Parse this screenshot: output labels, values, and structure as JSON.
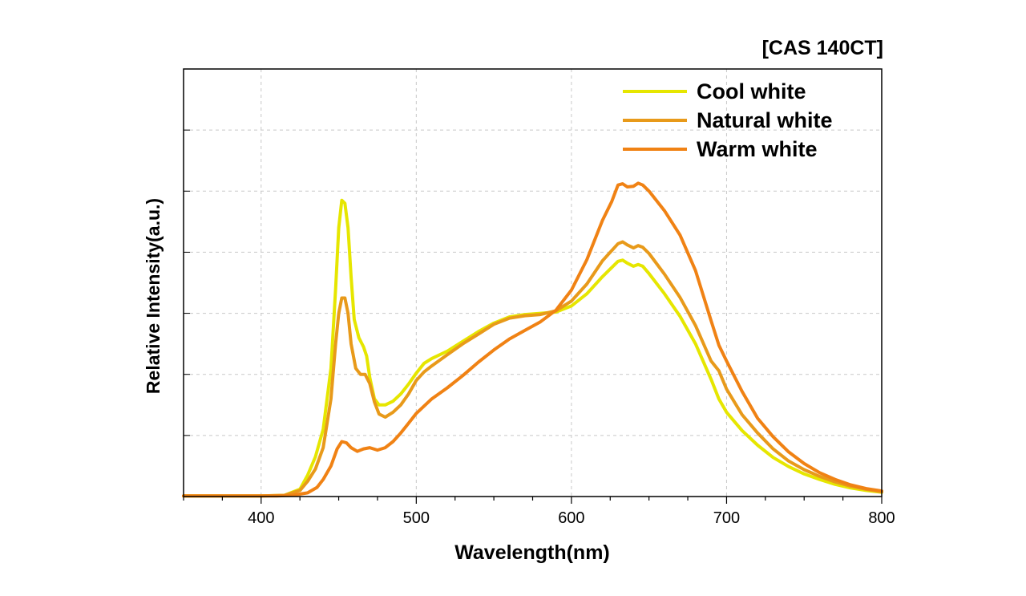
{
  "chart_data": {
    "type": "line",
    "title": "[CAS 140CT]",
    "xlabel": "Wavelength(nm)",
    "ylabel": "Relative Intensity(a.u.)",
    "xlim": [
      350,
      800
    ],
    "ylim": [
      0,
      7
    ],
    "xticks": [
      400,
      500,
      600,
      700,
      800
    ],
    "grid": true,
    "legend": "top-right",
    "series": [
      {
        "name": "Cool white",
        "color": "#e6e600",
        "points": [
          [
            350,
            0.01
          ],
          [
            380,
            0.01
          ],
          [
            400,
            0.01
          ],
          [
            415,
            0.02
          ],
          [
            425,
            0.12
          ],
          [
            430,
            0.35
          ],
          [
            435,
            0.65
          ],
          [
            440,
            1.1
          ],
          [
            445,
            2.1
          ],
          [
            448,
            3.4
          ],
          [
            450,
            4.4
          ],
          [
            452,
            4.85
          ],
          [
            454,
            4.8
          ],
          [
            456,
            4.4
          ],
          [
            458,
            3.6
          ],
          [
            460,
            2.9
          ],
          [
            463,
            2.6
          ],
          [
            466,
            2.45
          ],
          [
            468,
            2.3
          ],
          [
            470,
            1.95
          ],
          [
            473,
            1.6
          ],
          [
            476,
            1.5
          ],
          [
            480,
            1.5
          ],
          [
            485,
            1.56
          ],
          [
            490,
            1.68
          ],
          [
            495,
            1.84
          ],
          [
            500,
            2.02
          ],
          [
            505,
            2.18
          ],
          [
            510,
            2.26
          ],
          [
            520,
            2.38
          ],
          [
            530,
            2.54
          ],
          [
            540,
            2.7
          ],
          [
            550,
            2.84
          ],
          [
            560,
            2.94
          ],
          [
            570,
            2.98
          ],
          [
            580,
            3.0
          ],
          [
            590,
            3.02
          ],
          [
            600,
            3.12
          ],
          [
            610,
            3.32
          ],
          [
            620,
            3.6
          ],
          [
            630,
            3.85
          ],
          [
            633,
            3.87
          ],
          [
            636,
            3.82
          ],
          [
            640,
            3.77
          ],
          [
            643,
            3.8
          ],
          [
            646,
            3.77
          ],
          [
            650,
            3.65
          ],
          [
            660,
            3.32
          ],
          [
            670,
            2.95
          ],
          [
            680,
            2.5
          ],
          [
            690,
            1.92
          ],
          [
            695,
            1.6
          ],
          [
            700,
            1.38
          ],
          [
            710,
            1.08
          ],
          [
            720,
            0.84
          ],
          [
            730,
            0.64
          ],
          [
            740,
            0.49
          ],
          [
            750,
            0.37
          ],
          [
            760,
            0.28
          ],
          [
            770,
            0.2
          ],
          [
            780,
            0.14
          ],
          [
            790,
            0.1
          ],
          [
            800,
            0.07
          ]
        ]
      },
      {
        "name": "Natural white",
        "color": "#e89a1a",
        "points": [
          [
            350,
            0.01
          ],
          [
            380,
            0.01
          ],
          [
            400,
            0.01
          ],
          [
            415,
            0.02
          ],
          [
            425,
            0.1
          ],
          [
            430,
            0.25
          ],
          [
            435,
            0.45
          ],
          [
            440,
            0.8
          ],
          [
            445,
            1.6
          ],
          [
            448,
            2.5
          ],
          [
            450,
            3.0
          ],
          [
            452,
            3.25
          ],
          [
            454,
            3.25
          ],
          [
            456,
            3.0
          ],
          [
            458,
            2.5
          ],
          [
            461,
            2.1
          ],
          [
            464,
            2.0
          ],
          [
            467,
            2.0
          ],
          [
            470,
            1.85
          ],
          [
            473,
            1.55
          ],
          [
            476,
            1.35
          ],
          [
            480,
            1.3
          ],
          [
            485,
            1.38
          ],
          [
            490,
            1.5
          ],
          [
            495,
            1.68
          ],
          [
            500,
            1.9
          ],
          [
            505,
            2.04
          ],
          [
            510,
            2.14
          ],
          [
            520,
            2.32
          ],
          [
            530,
            2.5
          ],
          [
            540,
            2.66
          ],
          [
            550,
            2.82
          ],
          [
            560,
            2.92
          ],
          [
            570,
            2.96
          ],
          [
            580,
            2.98
          ],
          [
            590,
            3.04
          ],
          [
            600,
            3.2
          ],
          [
            610,
            3.48
          ],
          [
            620,
            3.86
          ],
          [
            630,
            4.14
          ],
          [
            633,
            4.17
          ],
          [
            636,
            4.12
          ],
          [
            640,
            4.07
          ],
          [
            643,
            4.11
          ],
          [
            646,
            4.08
          ],
          [
            650,
            3.98
          ],
          [
            660,
            3.64
          ],
          [
            670,
            3.26
          ],
          [
            680,
            2.8
          ],
          [
            690,
            2.22
          ],
          [
            695,
            2.06
          ],
          [
            700,
            1.76
          ],
          [
            710,
            1.34
          ],
          [
            720,
            1.04
          ],
          [
            730,
            0.78
          ],
          [
            740,
            0.58
          ],
          [
            750,
            0.44
          ],
          [
            760,
            0.33
          ],
          [
            770,
            0.24
          ],
          [
            780,
            0.17
          ],
          [
            790,
            0.12
          ],
          [
            800,
            0.08
          ]
        ]
      },
      {
        "name": "Warm white",
        "color": "#f08214",
        "points": [
          [
            350,
            0.01
          ],
          [
            380,
            0.01
          ],
          [
            410,
            0.01
          ],
          [
            420,
            0.02
          ],
          [
            430,
            0.06
          ],
          [
            436,
            0.15
          ],
          [
            440,
            0.28
          ],
          [
            445,
            0.5
          ],
          [
            449,
            0.78
          ],
          [
            452,
            0.9
          ],
          [
            455,
            0.88
          ],
          [
            458,
            0.8
          ],
          [
            462,
            0.74
          ],
          [
            466,
            0.78
          ],
          [
            470,
            0.8
          ],
          [
            475,
            0.76
          ],
          [
            480,
            0.8
          ],
          [
            485,
            0.9
          ],
          [
            490,
            1.04
          ],
          [
            495,
            1.2
          ],
          [
            500,
            1.36
          ],
          [
            510,
            1.6
          ],
          [
            520,
            1.78
          ],
          [
            530,
            1.98
          ],
          [
            540,
            2.2
          ],
          [
            550,
            2.4
          ],
          [
            560,
            2.58
          ],
          [
            570,
            2.72
          ],
          [
            580,
            2.86
          ],
          [
            590,
            3.05
          ],
          [
            600,
            3.38
          ],
          [
            610,
            3.88
          ],
          [
            620,
            4.52
          ],
          [
            626,
            4.83
          ],
          [
            630,
            5.1
          ],
          [
            633,
            5.12
          ],
          [
            636,
            5.07
          ],
          [
            640,
            5.08
          ],
          [
            643,
            5.13
          ],
          [
            646,
            5.1
          ],
          [
            650,
            5.0
          ],
          [
            660,
            4.68
          ],
          [
            670,
            4.28
          ],
          [
            680,
            3.7
          ],
          [
            690,
            2.88
          ],
          [
            695,
            2.48
          ],
          [
            700,
            2.22
          ],
          [
            710,
            1.72
          ],
          [
            720,
            1.28
          ],
          [
            730,
            0.98
          ],
          [
            740,
            0.73
          ],
          [
            750,
            0.54
          ],
          [
            760,
            0.39
          ],
          [
            770,
            0.28
          ],
          [
            780,
            0.19
          ],
          [
            790,
            0.13
          ],
          [
            800,
            0.09
          ]
        ]
      }
    ]
  }
}
